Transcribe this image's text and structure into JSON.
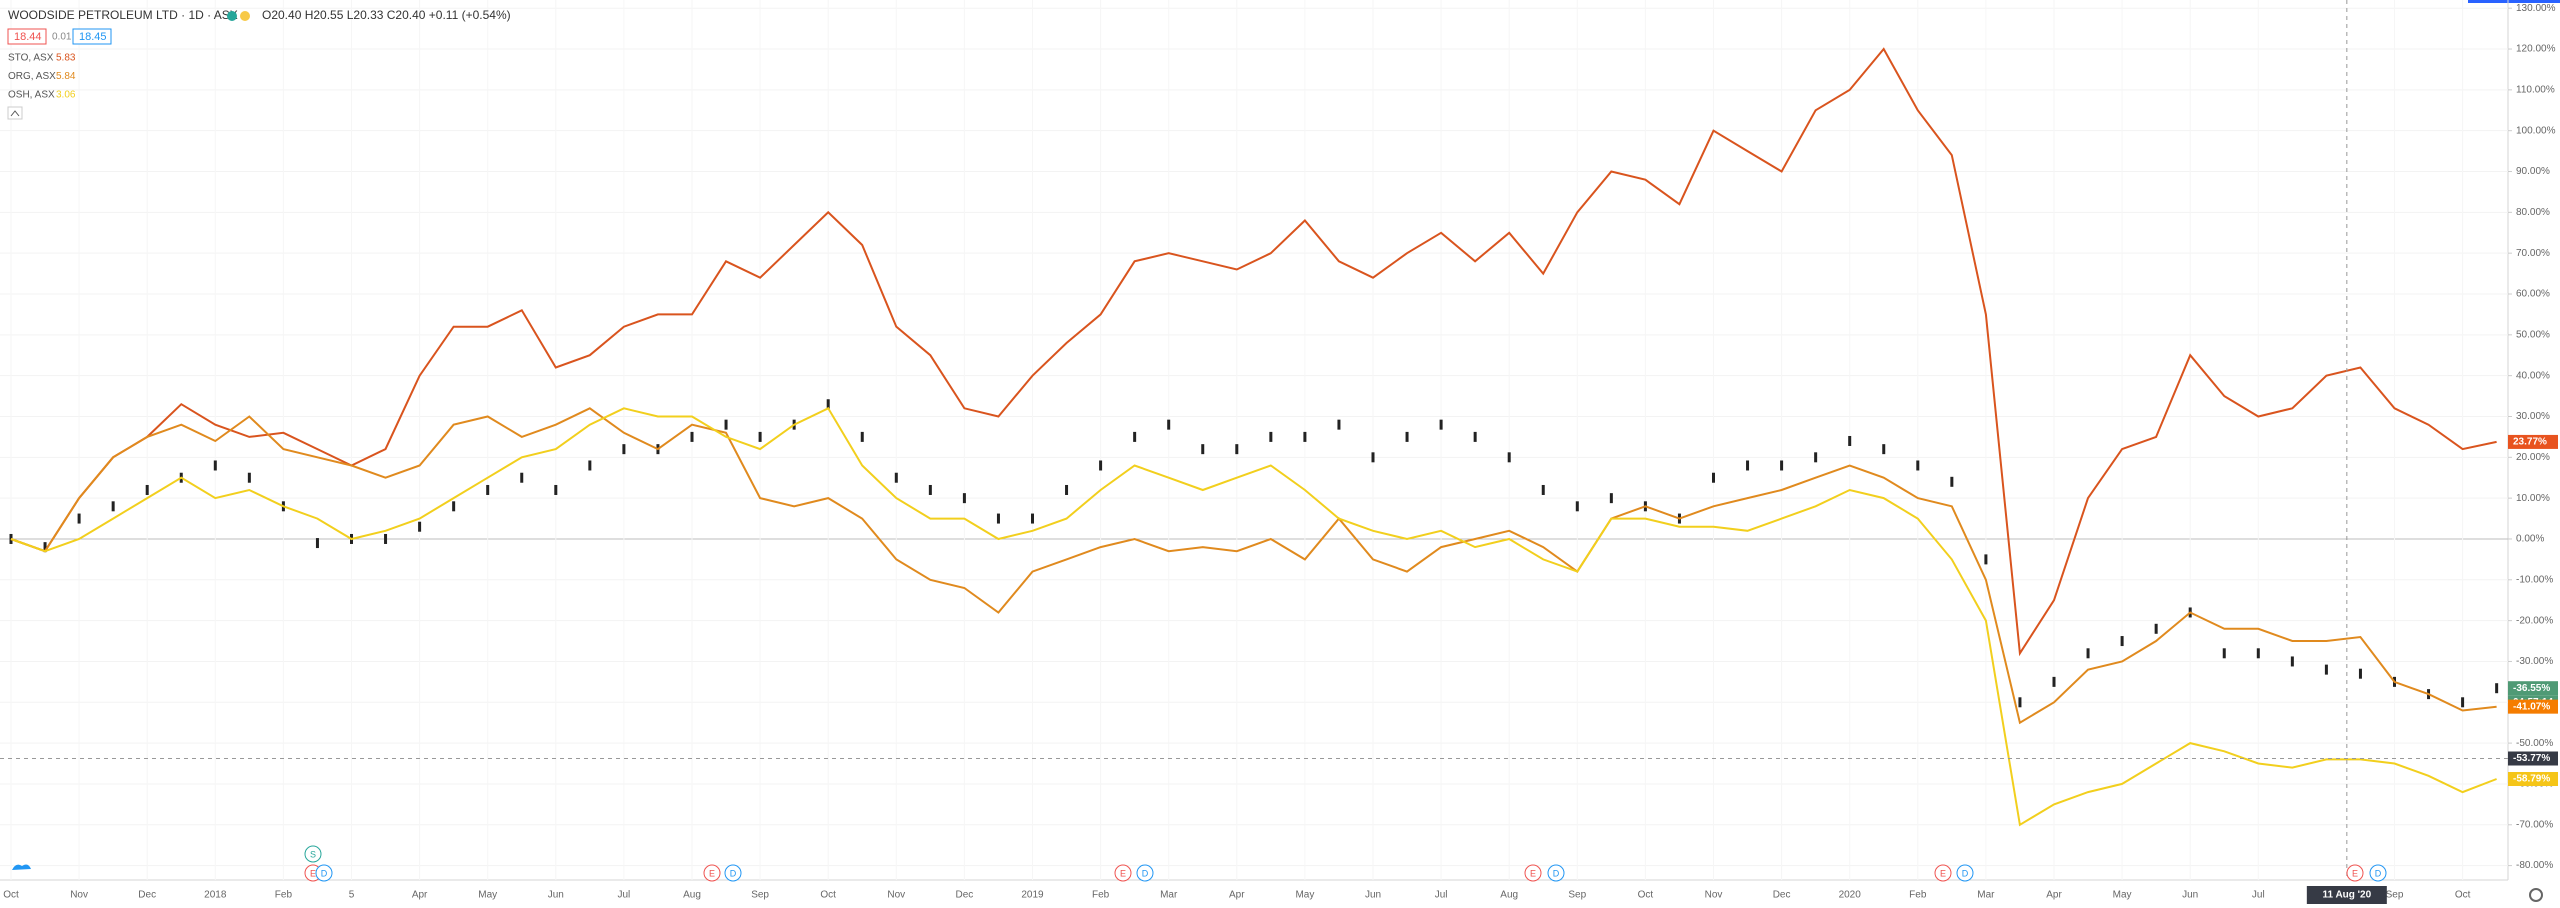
{
  "header": {
    "symbol": "WOODSIDE PETROLEUM LTD · 1D · ASX",
    "ohlc": "O20.40 H20.55 L20.33 C20.40 +0.11 (+0.54%)",
    "bid": "18.44",
    "spread": "0.01",
    "ask": "18.45"
  },
  "chart_data": {
    "type": "line",
    "categories": [
      "Oct",
      null,
      "Nov",
      null,
      "Dec",
      null,
      "2018",
      null,
      "Feb",
      null,
      "5",
      null,
      "Apr",
      null,
      "May",
      null,
      "Jun",
      null,
      "Jul",
      null,
      "Aug",
      null,
      "Sep",
      null,
      "Oct",
      null,
      "Nov",
      null,
      "Dec",
      null,
      "2019",
      null,
      "Feb",
      null,
      "Mar",
      null,
      "Apr",
      null,
      "May",
      null,
      "Jun",
      null,
      "Jul",
      null,
      "Aug",
      null,
      "Sep",
      null,
      "Oct",
      null,
      "Nov",
      null,
      "Dec",
      null,
      "2020",
      null,
      "Feb",
      null,
      "Mar",
      null,
      "Apr",
      null,
      "May",
      null,
      "Jun",
      null,
      "Jul",
      null,
      null,
      null,
      "Sep",
      null,
      "Oct",
      null
    ],
    "series": [
      {
        "style": "bars",
        "color": "#222222",
        "values": [
          0,
          -2,
          5,
          8,
          12,
          15,
          18,
          15,
          8,
          -1,
          0,
          0,
          3,
          8,
          12,
          15,
          12,
          18,
          22,
          22,
          25,
          28,
          25,
          28,
          33,
          25,
          15,
          12,
          10,
          5,
          5,
          12,
          18,
          25,
          28,
          22,
          22,
          25,
          25,
          28,
          20,
          25,
          28,
          25,
          20,
          12,
          8,
          10,
          8,
          5,
          15,
          18,
          18,
          20,
          24,
          22,
          18,
          14,
          -5,
          -40,
          -35,
          -28,
          -25,
          -22,
          -18,
          -28,
          -28,
          -30,
          -32,
          -33,
          -35,
          -38,
          -40,
          -36.55
        ],
        "price_tag": {
          "value": -36.55,
          "label": "-36.55%"
        },
        "tag_color": "#4f9a75",
        "countdown": "04:57:14"
      },
      {
        "name": "STO, ASX",
        "last_price": 5.83,
        "style": "line",
        "color": "#d9541e",
        "values": [
          0,
          -3,
          10,
          20,
          25,
          33,
          28,
          25,
          26,
          22,
          18,
          22,
          40,
          52,
          52,
          56,
          42,
          45,
          52,
          55,
          55,
          68,
          64,
          72,
          80,
          72,
          52,
          45,
          32,
          30,
          40,
          48,
          55,
          68,
          70,
          68,
          66,
          70,
          78,
          68,
          64,
          70,
          75,
          68,
          75,
          65,
          80,
          90,
          88,
          82,
          100,
          95,
          90,
          105,
          110,
          120,
          105,
          94,
          55,
          -28,
          -15,
          10,
          22,
          25,
          45,
          35,
          30,
          32,
          40,
          42,
          32,
          28,
          22,
          23.77
        ],
        "price_tag": {
          "value": 23.77,
          "label": "23.77%"
        },
        "tag_color": "#e8531f"
      },
      {
        "name": "ORG, ASX",
        "last_price": 5.84,
        "style": "line",
        "color": "#e08a1e",
        "values": [
          0,
          -3,
          10,
          20,
          25,
          28,
          24,
          30,
          22,
          20,
          18,
          15,
          18,
          28,
          30,
          25,
          28,
          32,
          26,
          22,
          28,
          26,
          10,
          8,
          10,
          5,
          -5,
          -10,
          -12,
          -18,
          -8,
          -5,
          -2,
          0,
          -3,
          -2,
          -3,
          0,
          -5,
          5,
          -5,
          -8,
          -2,
          0,
          2,
          -2,
          -8,
          5,
          8,
          5,
          8,
          10,
          12,
          15,
          18,
          15,
          10,
          8,
          -10,
          -45,
          -40,
          -32,
          -30,
          -25,
          -18,
          -22,
          -22,
          -25,
          -25,
          -24,
          -35,
          -38,
          -42,
          -41.07
        ],
        "price_tag": {
          "value": -41.07,
          "label": "-41.07%"
        },
        "tag_color": "#f57c00"
      },
      {
        "name": "OSH, ASX",
        "last_price": 3.06,
        "style": "line",
        "color": "#f2cf1d",
        "values": [
          0,
          -3,
          0,
          5,
          10,
          15,
          10,
          12,
          8,
          5,
          0,
          2,
          5,
          10,
          15,
          20,
          22,
          28,
          32,
          30,
          30,
          25,
          22,
          28,
          32,
          18,
          10,
          5,
          5,
          0,
          2,
          5,
          12,
          18,
          15,
          12,
          15,
          18,
          12,
          5,
          2,
          0,
          2,
          -2,
          0,
          -5,
          -8,
          5,
          5,
          3,
          3,
          2,
          5,
          8,
          12,
          10,
          5,
          -5,
          -20,
          -70,
          -65,
          -62,
          -60,
          -55,
          -50,
          -52,
          -55,
          -56,
          -54,
          -54,
          -55,
          -58,
          -62,
          -58.79
        ],
        "price_tag": {
          "value": -58.79,
          "label": "-58.79%"
        },
        "tag_color": "#f5c518"
      }
    ],
    "ylim": [
      -80,
      130
    ],
    "yticks": [
      {
        "value": -80,
        "label": "-80.00%"
      },
      {
        "value": -70,
        "label": "-70.00%"
      },
      {
        "value": -60,
        "label": "-60.00%"
      },
      {
        "value": -50,
        "label": "-50.00%"
      },
      {
        "value": -40,
        "label": "-40.00%"
      },
      {
        "value": -30,
        "label": "-30.00%"
      },
      {
        "value": -20,
        "label": "-20.00%"
      },
      {
        "value": -10,
        "label": "-10.00%"
      },
      {
        "value": 0,
        "label": "0.00%"
      },
      {
        "value": 10,
        "label": "10.00%"
      },
      {
        "value": 20,
        "label": "20.00%"
      },
      {
        "value": 30,
        "label": "30.00%"
      },
      {
        "value": 40,
        "label": "40.00%"
      },
      {
        "value": 50,
        "label": "50.00%"
      },
      {
        "value": 60,
        "label": "60.00%"
      },
      {
        "value": 70,
        "label": "70.00%"
      },
      {
        "value": 80,
        "label": "80.00%"
      },
      {
        "value": 90,
        "label": "90.00%"
      },
      {
        "value": 100,
        "label": "100.00%"
      },
      {
        "value": 110,
        "label": "110.00%"
      },
      {
        "value": 120,
        "label": "120.00%"
      },
      {
        "value": 130,
        "label": "130.00%"
      }
    ],
    "grid": true,
    "crosshair": {
      "x_label": "11 Aug '20",
      "y": {
        "value": -53.77,
        "label": "-53.77%"
      }
    },
    "events": [
      "S",
      "E",
      "D",
      "E",
      "D",
      "E",
      "D",
      "E",
      "D",
      "E",
      "D",
      "E",
      "D"
    ]
  }
}
